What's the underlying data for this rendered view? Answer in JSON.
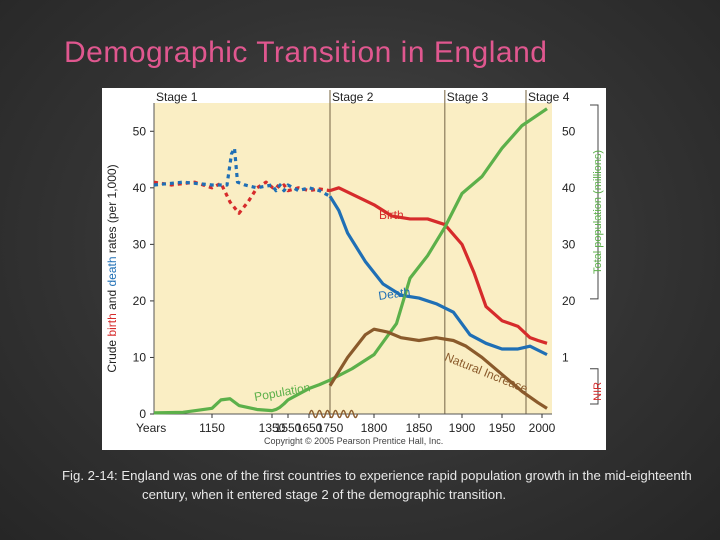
{
  "slide": {
    "title": "Demographic Transition in England",
    "caption": "Fig. 2-14: England was one of the first countries to experience rapid population growth in the mid-eighteenth century, when it entered stage 2 of the demographic transition."
  },
  "chart_data": {
    "type": "line",
    "copyright": "Copyright © 2005 Pearson Prentice Hall, Inc.",
    "stages": [
      {
        "label": "Stage 1",
        "start": 1050
      },
      {
        "label": "Stage 2",
        "start": 1750
      },
      {
        "label": "Stage 3",
        "start": 1880
      },
      {
        "label": "Stage 4",
        "start": 1980
      }
    ],
    "x_axis": {
      "label": "Years",
      "ticks": [
        1150,
        1350,
        1550,
        1650,
        1750,
        1800,
        1850,
        1900,
        1950,
        2000
      ]
    },
    "y_left": {
      "label_parts": [
        {
          "text": "Crude ",
          "color": "#222222"
        },
        {
          "text": "birth",
          "color": "#d62b2b"
        },
        {
          "text": " and ",
          "color": "#222222"
        },
        {
          "text": "death",
          "color": "#1f6fb5"
        },
        {
          "text": " rates (per 1,000)",
          "color": "#222222"
        }
      ],
      "range": [
        0,
        55
      ],
      "ticks": [
        0,
        10,
        20,
        30,
        40,
        50
      ]
    },
    "y_right": {
      "label": "Total population (millions)",
      "nir_label": "NIR",
      "ticks": [
        "1",
        "20",
        "30",
        "40",
        "50"
      ]
    },
    "colors": {
      "birth": "#d62b2b",
      "death": "#1f6fb5",
      "population": "#5cb04a",
      "natural_increase": "#8a5a2b",
      "stage_bg": "#faeec4"
    },
    "series": [
      {
        "name": "Birth",
        "dashed_until": 1750,
        "points": [
          [
            1050,
            41
          ],
          [
            1080,
            40.5
          ],
          [
            1120,
            41
          ],
          [
            1150,
            40
          ],
          [
            1180,
            40.8
          ],
          [
            1210,
            37.5
          ],
          [
            1240,
            35.5
          ],
          [
            1270,
            37.5
          ],
          [
            1300,
            40
          ],
          [
            1330,
            41
          ],
          [
            1360,
            40
          ],
          [
            1400,
            40.5
          ],
          [
            1450,
            40
          ],
          [
            1500,
            40.5
          ],
          [
            1550,
            39.5
          ],
          [
            1600,
            40
          ],
          [
            1650,
            39.5
          ],
          [
            1700,
            39.8
          ],
          [
            1750,
            39.5
          ],
          [
            1760,
            40
          ],
          [
            1780,
            38.5
          ],
          [
            1800,
            37
          ],
          [
            1820,
            35
          ],
          [
            1840,
            34.5
          ],
          [
            1860,
            34.5
          ],
          [
            1880,
            33.5
          ],
          [
            1900,
            30
          ],
          [
            1915,
            25
          ],
          [
            1930,
            19
          ],
          [
            1950,
            16.5
          ],
          [
            1970,
            15.5
          ],
          [
            1985,
            13.5
          ],
          [
            1995,
            13
          ],
          [
            2005,
            12.5
          ]
        ]
      },
      {
        "name": "Death",
        "dashed_until": 1750,
        "points": [
          [
            1050,
            40.5
          ],
          [
            1100,
            41
          ],
          [
            1150,
            40.5
          ],
          [
            1200,
            40.5
          ],
          [
            1215,
            46
          ],
          [
            1225,
            47
          ],
          [
            1235,
            41
          ],
          [
            1260,
            40.5
          ],
          [
            1300,
            40
          ],
          [
            1350,
            40.5
          ],
          [
            1400,
            39.5
          ],
          [
            1450,
            40.5
          ],
          [
            1500,
            39.5
          ],
          [
            1550,
            40.5
          ],
          [
            1600,
            39.5
          ],
          [
            1650,
            40
          ],
          [
            1700,
            39.5
          ],
          [
            1750,
            38.5
          ],
          [
            1760,
            36
          ],
          [
            1770,
            32
          ],
          [
            1790,
            27
          ],
          [
            1810,
            23
          ],
          [
            1830,
            21
          ],
          [
            1850,
            20.5
          ],
          [
            1870,
            19.5
          ],
          [
            1890,
            18
          ],
          [
            1910,
            14
          ],
          [
            1930,
            12.5
          ],
          [
            1950,
            11.5
          ],
          [
            1970,
            11.5
          ],
          [
            1985,
            12
          ],
          [
            2005,
            10.5
          ]
        ]
      },
      {
        "name": "Population",
        "points": [
          [
            1050,
            0.2
          ],
          [
            1100,
            0.3
          ],
          [
            1150,
            1
          ],
          [
            1180,
            2.5
          ],
          [
            1210,
            2.7
          ],
          [
            1240,
            1.5
          ],
          [
            1300,
            0.8
          ],
          [
            1350,
            0.6
          ],
          [
            1400,
            0.8
          ],
          [
            1450,
            1.2
          ],
          [
            1500,
            1.8
          ],
          [
            1550,
            2.5
          ],
          [
            1600,
            3.5
          ],
          [
            1650,
            4.5
          ],
          [
            1700,
            5.2
          ],
          [
            1750,
            6
          ],
          [
            1775,
            8
          ],
          [
            1800,
            10.5
          ],
          [
            1825,
            16
          ],
          [
            1840,
            24
          ],
          [
            1860,
            28
          ],
          [
            1880,
            33
          ],
          [
            1900,
            39
          ],
          [
            1925,
            42
          ],
          [
            1950,
            47
          ],
          [
            1975,
            51
          ],
          [
            2005,
            54
          ]
        ]
      },
      {
        "name": "Natural Increase",
        "points": [
          [
            1750,
            5
          ],
          [
            1770,
            10
          ],
          [
            1790,
            14
          ],
          [
            1800,
            15
          ],
          [
            1815,
            14.5
          ],
          [
            1830,
            13.5
          ],
          [
            1850,
            13
          ],
          [
            1870,
            13.5
          ],
          [
            1890,
            13
          ],
          [
            1905,
            12
          ],
          [
            1925,
            10
          ],
          [
            1950,
            7
          ],
          [
            1975,
            4
          ],
          [
            1995,
            2
          ],
          [
            2005,
            1
          ]
        ]
      }
    ],
    "labels": {
      "birth": "Birth",
      "death": "Death",
      "population": "Population",
      "natural_increase": "Natural Increase"
    }
  }
}
